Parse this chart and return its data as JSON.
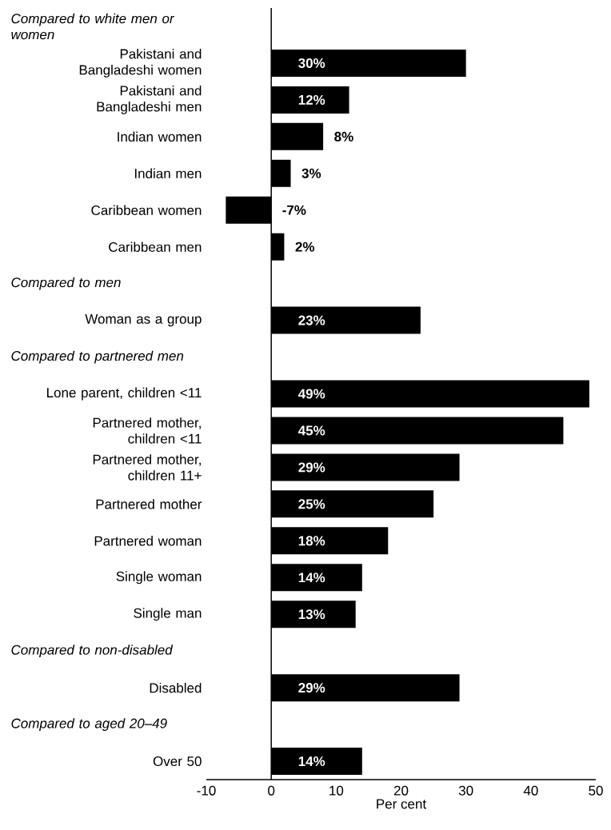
{
  "chart_data": {
    "type": "bar",
    "orientation": "horizontal",
    "xlabel": "Per cent",
    "categories": [
      null,
      "Pakistani and Bangladeshi women",
      "Pakistani and Bangladeshi men",
      "Indian women",
      "Indian men",
      "Caribbean women",
      "Caribbean men",
      null,
      "Woman as a group",
      null,
      "Lone parent, children <11",
      "Partnered mother, children <11",
      "Partnered mother, children 11+",
      "Partnered mother",
      "Partnered woman",
      "Single woman",
      "Single man",
      null,
      "Disabled",
      null,
      "Over 50"
    ],
    "values": [
      null,
      30,
      12,
      8,
      3,
      -7,
      2,
      null,
      23,
      null,
      49,
      45,
      29,
      25,
      18,
      14,
      13,
      null,
      29,
      null,
      14
    ],
    "value_labels": [
      null,
      "30%",
      "12%",
      "8%",
      "3%",
      "-7%",
      "2%",
      null,
      "23%",
      null,
      "49%",
      "45%",
      "29%",
      "25%",
      "18%",
      "14%",
      "13%",
      null,
      "29%",
      null,
      "14%"
    ],
    "color": "#000000",
    "xlim": [
      -10,
      50
    ],
    "xticks": [
      -10,
      0,
      10,
      20,
      30,
      40,
      50
    ],
    "annotations": [
      "Compared to white men or women",
      "Compared to men",
      "Compared to partnered men",
      "Compared to non-disabled",
      "Compared to aged 20–49"
    ]
  }
}
